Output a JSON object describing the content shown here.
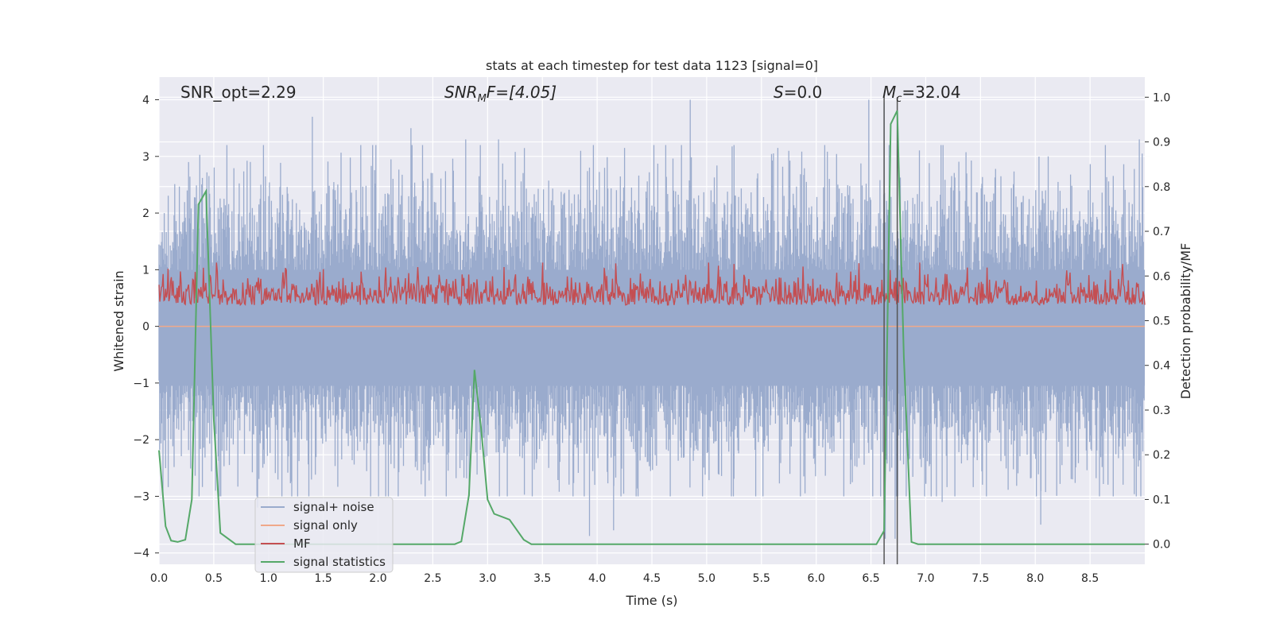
{
  "chart_data": {
    "type": "line",
    "title": "stats at each timestep for test data 1123 [signal=0]",
    "xlabel": "Time (s)",
    "ylabel_left": "Whitened strain",
    "ylabel_right": "Detection probability/MF",
    "xlim": [
      0.0,
      9.0
    ],
    "ylim_left": [
      -4.2,
      4.4
    ],
    "ylim_right": [
      -0.045,
      1.045
    ],
    "x_ticks": [
      "0.0",
      "0.5",
      "1.0",
      "1.5",
      "2.0",
      "2.5",
      "3.0",
      "3.5",
      "4.0",
      "4.5",
      "5.0",
      "5.5",
      "6.0",
      "6.5",
      "7.0",
      "7.5",
      "8.0",
      "8.5"
    ],
    "y_ticks_left": [
      "4",
      "3",
      "2",
      "1",
      "0",
      "−1",
      "−2",
      "−3",
      "−4"
    ],
    "y_ticks_right": [
      "1.0",
      "0.9",
      "0.8",
      "0.7",
      "0.6",
      "0.5",
      "0.4",
      "0.3",
      "0.2",
      "0.1",
      "0.0"
    ],
    "annotations": {
      "snr_opt": "SNR_opt=2.29",
      "snr_mf_base": "SNR",
      "snr_mf_sub": "M",
      "snr_mf_rest": "F=[4.05]",
      "s_var": "S",
      "s_rest": "=0.0",
      "mc_var": "M",
      "mc_sub": "c",
      "mc_rest": "=32.04"
    },
    "vertical_lines_x": [
      6.62,
      6.74
    ],
    "legend": {
      "location": "lower left",
      "entries": [
        {
          "label": "signal+ noise",
          "color": "#9aabcd"
        },
        {
          "label": "signal only",
          "color": "#f0a88a"
        },
        {
          "label": "MF",
          "color": "#c44e52"
        },
        {
          "label": "signal statistics",
          "color": "#55a868"
        }
      ]
    },
    "series": [
      {
        "name": "signal statistics",
        "axis": "right",
        "color": "#55a868",
        "x": [
          0.0,
          0.06,
          0.11,
          0.17,
          0.24,
          0.3,
          0.36,
          0.43,
          0.5,
          0.56,
          0.7,
          1.0,
          2.0,
          2.5,
          2.7,
          2.76,
          2.83,
          2.88,
          2.94,
          3.0,
          3.06,
          3.2,
          3.33,
          3.4,
          3.5,
          4.0,
          5.0,
          6.0,
          6.55,
          6.62,
          6.68,
          6.74,
          6.8,
          6.87,
          6.93,
          7.0,
          8.0,
          9.0
        ],
        "y": [
          0.21,
          0.04,
          0.008,
          0.005,
          0.01,
          0.1,
          0.76,
          0.79,
          0.28,
          0.025,
          0.0,
          0.0,
          0.0,
          0.0,
          0.0,
          0.006,
          0.11,
          0.39,
          0.26,
          0.1,
          0.068,
          0.055,
          0.01,
          0.0,
          0.0,
          0.0,
          0.0,
          0.0,
          0.0,
          0.03,
          0.94,
          0.97,
          0.42,
          0.005,
          0.0,
          0.0,
          0.0,
          0.0
        ]
      },
      {
        "name": "signal+ noise",
        "axis": "left",
        "color": "#9aabcd",
        "note": "dense whitened noise; envelope roughly +-2 with spikes to about 4.0 near t=4.85 and t=6.48, -3.7 near t=3.93, 6.63 and 6.7",
        "peaks_x": [
          0.27,
          0.43,
          0.62,
          1.4,
          2.3,
          2.8,
          3.1,
          3.85,
          4.25,
          4.85,
          5.25,
          5.65,
          5.75,
          6.48,
          6.62,
          8.95
        ],
        "peaks_y": [
          2.9,
          2.35,
          3.2,
          3.7,
          3.5,
          3.3,
          3.3,
          3.1,
          3.15,
          4.0,
          3.2,
          3.15,
          3.1,
          4.0,
          3.95,
          3.3
        ],
        "troughs_x": [
          0.55,
          0.9,
          3.93,
          4.15,
          6.63,
          6.72,
          7.15,
          8.05
        ],
        "troughs_y": [
          -3.0,
          -3.2,
          -3.7,
          -3.6,
          -3.75,
          -3.75,
          -3.1,
          -3.5
        ]
      },
      {
        "name": "MF",
        "axis": "right",
        "color": "#c44e52",
        "note": "noisy band between about 0.495 and 0.63 on the right axis"
      },
      {
        "name": "signal only",
        "axis": "left",
        "color": "#f0a88a",
        "note": "flat at 0 (signal=0)"
      }
    ]
  }
}
